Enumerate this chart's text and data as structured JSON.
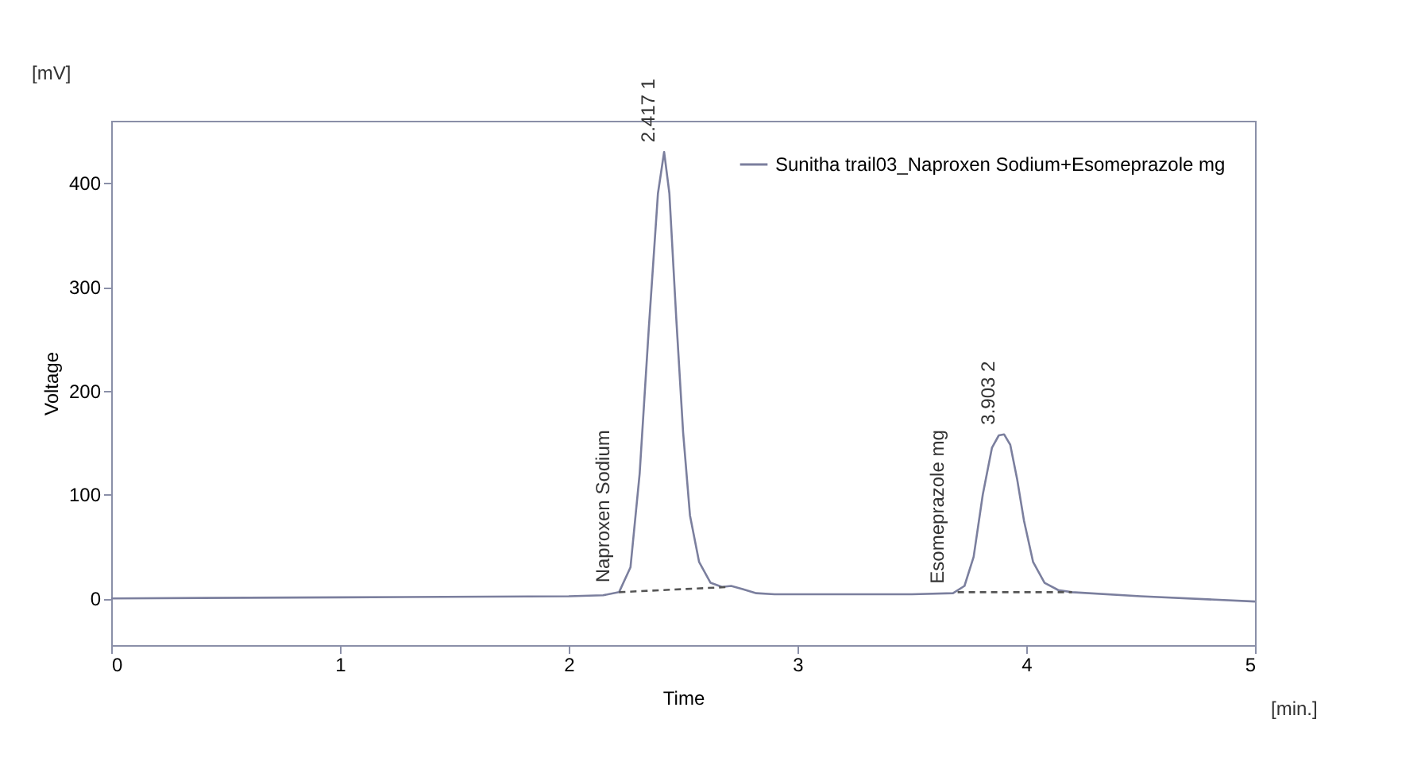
{
  "chart_data": {
    "type": "line",
    "xlabel": "Time",
    "ylabel": "Voltage",
    "xlim": [
      0,
      5
    ],
    "ylim": [
      -45,
      460
    ],
    "xticks": [
      0,
      1,
      2,
      3,
      4,
      5
    ],
    "yticks": [
      0,
      100,
      200,
      300,
      400
    ],
    "legend": "top right",
    "grid": false,
    "marker": "none",
    "series": [
      {
        "name": "Sunitha trail03_Naproxen Sodium+Esomeprazole mg",
        "color": "#7b7f9e",
        "line_style": "solid",
        "x": [
          0,
          1,
          2,
          2.15,
          2.22,
          2.27,
          2.31,
          2.35,
          2.39,
          2.417,
          2.44,
          2.47,
          2.5,
          2.53,
          2.57,
          2.62,
          2.67,
          2.71,
          2.76,
          2.82,
          2.9,
          3.2,
          3.5,
          3.68,
          3.73,
          3.77,
          3.81,
          3.85,
          3.88,
          3.903,
          3.93,
          3.96,
          3.99,
          4.03,
          4.08,
          4.14,
          4.2,
          4.5,
          5
        ],
        "values": [
          0,
          1,
          2,
          3,
          6,
          30,
          120,
          260,
          390,
          430,
          390,
          270,
          160,
          80,
          35,
          15,
          11,
          12,
          9,
          5,
          4,
          4,
          4,
          5,
          12,
          40,
          100,
          145,
          157,
          158,
          148,
          115,
          75,
          35,
          15,
          8,
          6,
          2,
          -3
        ]
      },
      {
        "color": "#555555",
        "line_style": "dashed",
        "x": [
          2.22,
          2.7
        ],
        "values": [
          6,
          11
        ]
      },
      {
        "color": "#555555",
        "line_style": "dashed",
        "x": [
          3.7,
          4.2
        ],
        "values": [
          6,
          6
        ]
      }
    ],
    "annotations": [
      {
        "text": "Naproxen Sodium",
        "x": 2.22,
        "y": 6
      },
      {
        "text": "2.417   1",
        "x": 2.417,
        "y": 430
      },
      {
        "text": "Esomeprazole mg",
        "x": 3.68,
        "y": 5
      },
      {
        "text": "3.903   2",
        "x": 3.903,
        "y": 158
      },
      "[mV]",
      "[min.]"
    ]
  }
}
